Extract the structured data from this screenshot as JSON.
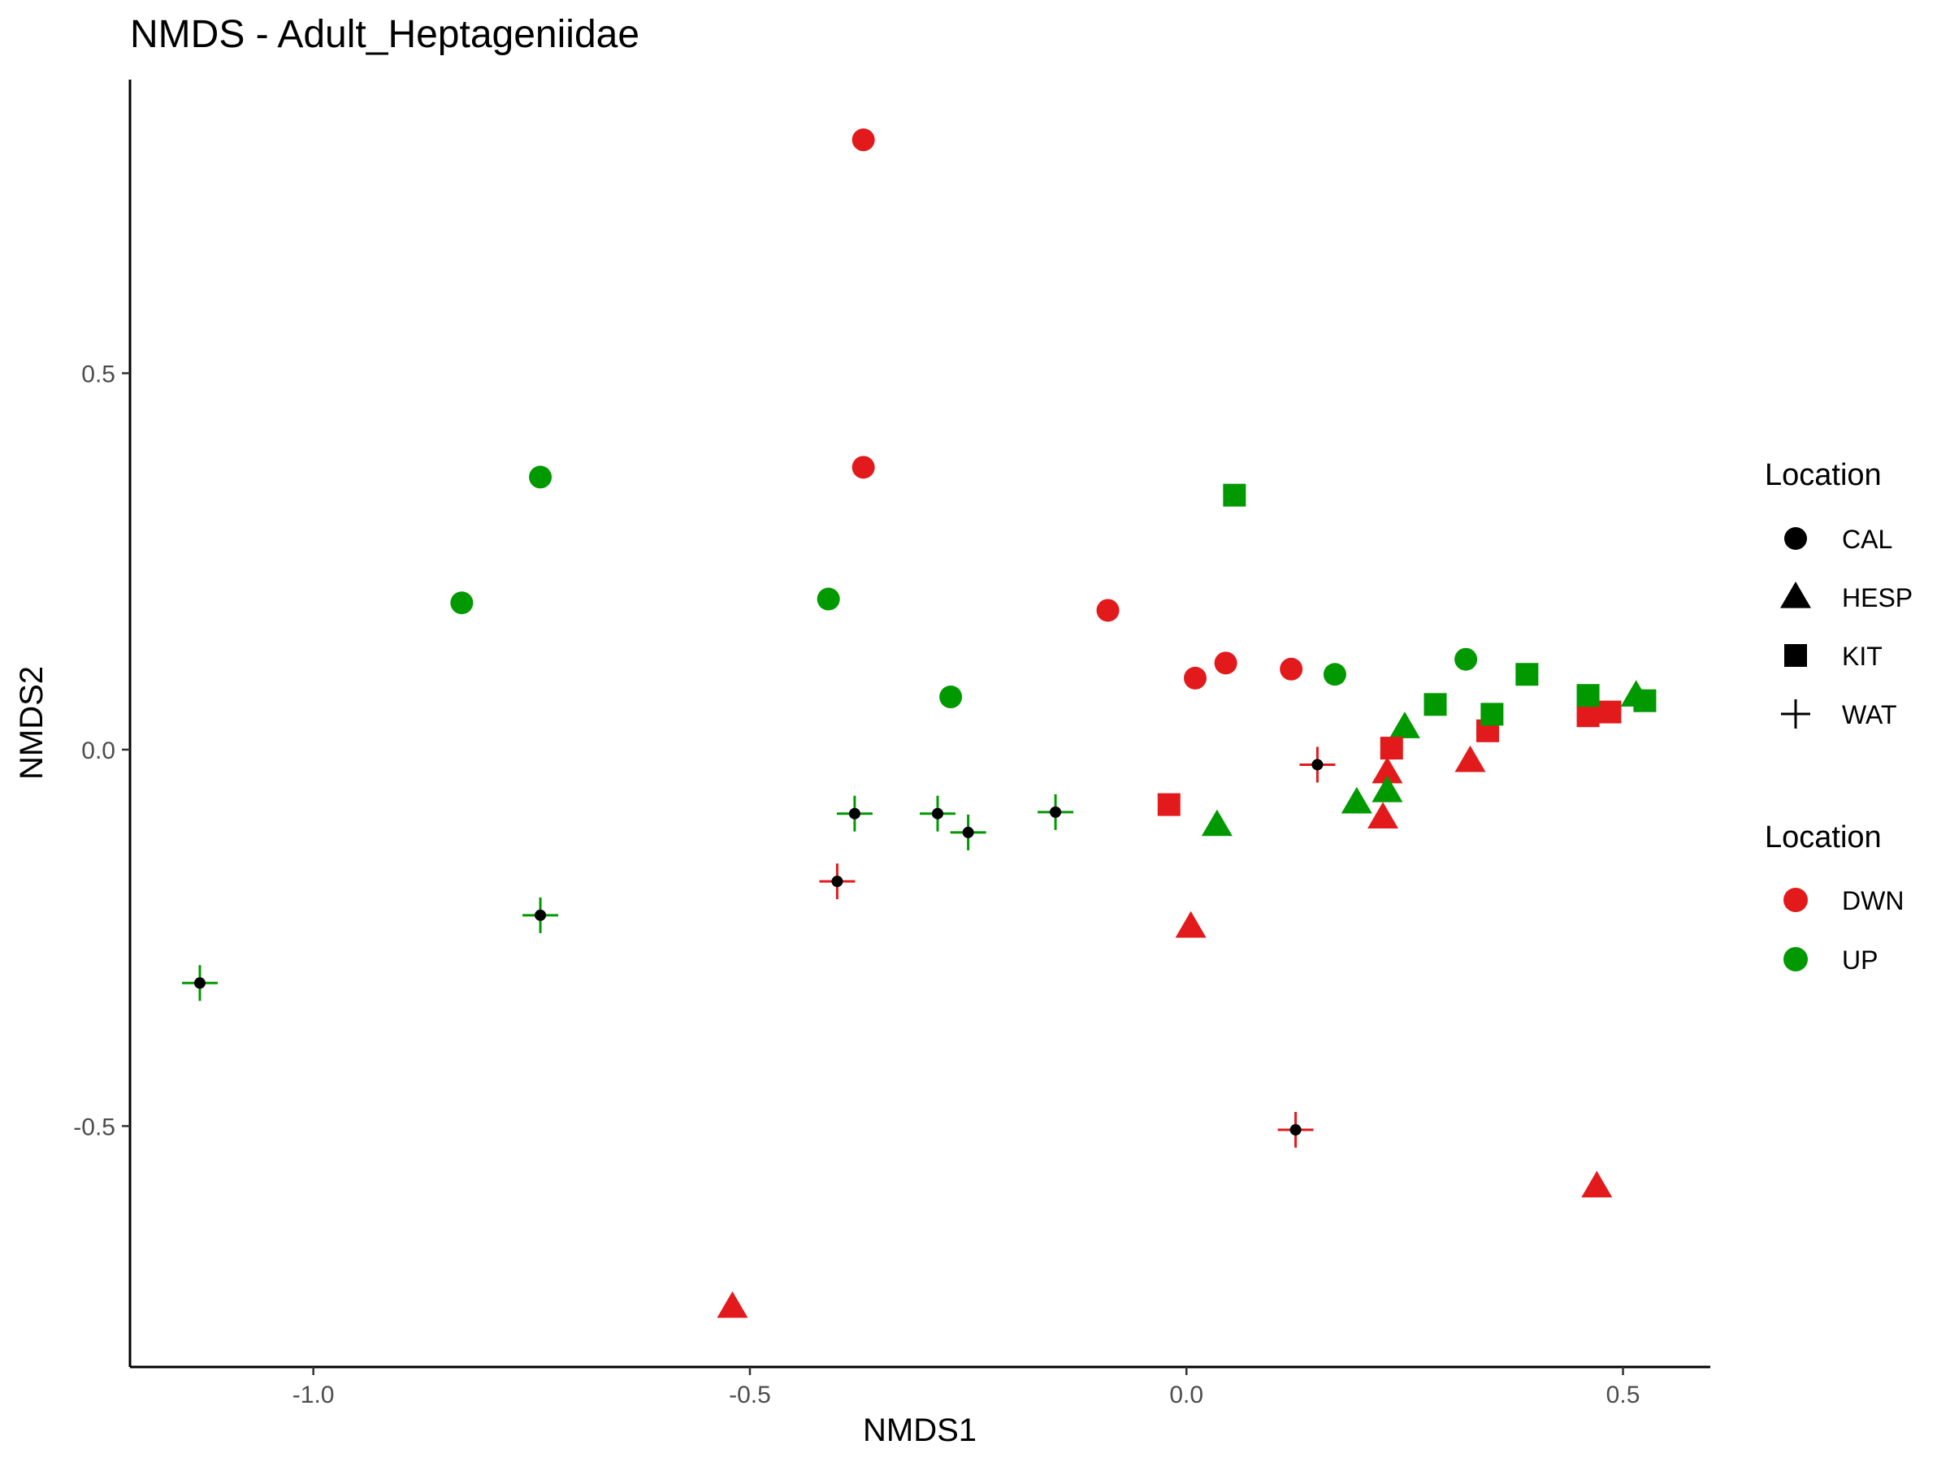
{
  "chart_data": {
    "type": "scatter",
    "title": "NMDS - Adult_Heptageniidae",
    "xlabel": "NMDS1",
    "ylabel": "NMDS2",
    "xlim": [
      -1.21,
      0.6
    ],
    "ylim": [
      -0.82,
      0.89
    ],
    "x_ticks": [
      {
        "value": -1.0,
        "label": "-1.0"
      },
      {
        "value": -0.5,
        "label": "-0.5"
      },
      {
        "value": 0.0,
        "label": "0.0"
      },
      {
        "value": 0.5,
        "label": "0.5"
      }
    ],
    "y_ticks": [
      {
        "value": 0.5,
        "label": "0.5"
      },
      {
        "value": 0.0,
        "label": "0.0"
      },
      {
        "value": -0.5,
        "label": "-0.5"
      }
    ],
    "grid": false,
    "legend_position": "right",
    "shape_legend": {
      "title": "Location",
      "items": [
        {
          "label": "CAL",
          "shape": "circle"
        },
        {
          "label": "HESP",
          "shape": "triangle"
        },
        {
          "label": "KIT",
          "shape": "square"
        },
        {
          "label": "WAT",
          "shape": "cross"
        }
      ]
    },
    "color_legend": {
      "title": "Location",
      "items": [
        {
          "label": "DWN",
          "color": "#e31a1c"
        },
        {
          "label": "UP",
          "color": "#009900"
        }
      ]
    },
    "points": [
      {
        "x": -0.37,
        "y": 0.81,
        "shape": "CAL",
        "color": "DWN"
      },
      {
        "x": -0.37,
        "y": 0.375,
        "shape": "CAL",
        "color": "DWN"
      },
      {
        "x": -0.09,
        "y": 0.185,
        "shape": "CAL",
        "color": "DWN"
      },
      {
        "x": 0.01,
        "y": 0.095,
        "shape": "CAL",
        "color": "DWN"
      },
      {
        "x": 0.045,
        "y": 0.115,
        "shape": "CAL",
        "color": "DWN"
      },
      {
        "x": 0.12,
        "y": 0.107,
        "shape": "CAL",
        "color": "DWN"
      },
      {
        "x": -0.74,
        "y": 0.362,
        "shape": "CAL",
        "color": "UP"
      },
      {
        "x": -0.83,
        "y": 0.195,
        "shape": "CAL",
        "color": "UP"
      },
      {
        "x": -0.41,
        "y": 0.2,
        "shape": "CAL",
        "color": "UP"
      },
      {
        "x": -0.27,
        "y": 0.07,
        "shape": "CAL",
        "color": "UP"
      },
      {
        "x": 0.17,
        "y": 0.1,
        "shape": "CAL",
        "color": "UP"
      },
      {
        "x": 0.32,
        "y": 0.12,
        "shape": "CAL",
        "color": "UP"
      },
      {
        "x": -0.52,
        "y": -0.74,
        "shape": "HESP",
        "color": "DWN"
      },
      {
        "x": 0.005,
        "y": -0.235,
        "shape": "HESP",
        "color": "DWN"
      },
      {
        "x": 0.225,
        "y": -0.09,
        "shape": "HESP",
        "color": "DWN"
      },
      {
        "x": 0.23,
        "y": -0.03,
        "shape": "HESP",
        "color": "DWN"
      },
      {
        "x": 0.325,
        "y": -0.015,
        "shape": "HESP",
        "color": "DWN"
      },
      {
        "x": 0.47,
        "y": -0.58,
        "shape": "HESP",
        "color": "DWN"
      },
      {
        "x": 0.035,
        "y": -0.1,
        "shape": "HESP",
        "color": "UP"
      },
      {
        "x": 0.195,
        "y": -0.07,
        "shape": "HESP",
        "color": "UP"
      },
      {
        "x": 0.23,
        "y": -0.055,
        "shape": "HESP",
        "color": "UP"
      },
      {
        "x": 0.25,
        "y": 0.03,
        "shape": "HESP",
        "color": "UP"
      },
      {
        "x": 0.515,
        "y": 0.072,
        "shape": "HESP",
        "color": "UP"
      },
      {
        "x": -0.02,
        "y": -0.073,
        "shape": "KIT",
        "color": "DWN"
      },
      {
        "x": 0.235,
        "y": 0.002,
        "shape": "KIT",
        "color": "DWN"
      },
      {
        "x": 0.345,
        "y": 0.025,
        "shape": "KIT",
        "color": "DWN"
      },
      {
        "x": 0.46,
        "y": 0.045,
        "shape": "KIT",
        "color": "DWN"
      },
      {
        "x": 0.485,
        "y": 0.05,
        "shape": "KIT",
        "color": "DWN"
      },
      {
        "x": 0.055,
        "y": 0.338,
        "shape": "KIT",
        "color": "UP"
      },
      {
        "x": 0.285,
        "y": 0.06,
        "shape": "KIT",
        "color": "UP"
      },
      {
        "x": 0.35,
        "y": 0.047,
        "shape": "KIT",
        "color": "UP"
      },
      {
        "x": 0.39,
        "y": 0.1,
        "shape": "KIT",
        "color": "UP"
      },
      {
        "x": 0.46,
        "y": 0.072,
        "shape": "KIT",
        "color": "UP"
      },
      {
        "x": 0.525,
        "y": 0.065,
        "shape": "KIT",
        "color": "UP"
      },
      {
        "x": -0.4,
        "y": -0.175,
        "shape": "WAT",
        "color": "DWN"
      },
      {
        "x": 0.15,
        "y": -0.02,
        "shape": "WAT",
        "color": "DWN"
      },
      {
        "x": 0.125,
        "y": -0.505,
        "shape": "WAT",
        "color": "DWN"
      },
      {
        "x": -1.13,
        "y": -0.31,
        "shape": "WAT",
        "color": "UP"
      },
      {
        "x": -0.74,
        "y": -0.22,
        "shape": "WAT",
        "color": "UP"
      },
      {
        "x": -0.38,
        "y": -0.085,
        "shape": "WAT",
        "color": "UP"
      },
      {
        "x": -0.285,
        "y": -0.085,
        "shape": "WAT",
        "color": "UP"
      },
      {
        "x": -0.25,
        "y": -0.11,
        "shape": "WAT",
        "color": "UP"
      },
      {
        "x": -0.15,
        "y": -0.083,
        "shape": "WAT",
        "color": "UP"
      }
    ]
  }
}
